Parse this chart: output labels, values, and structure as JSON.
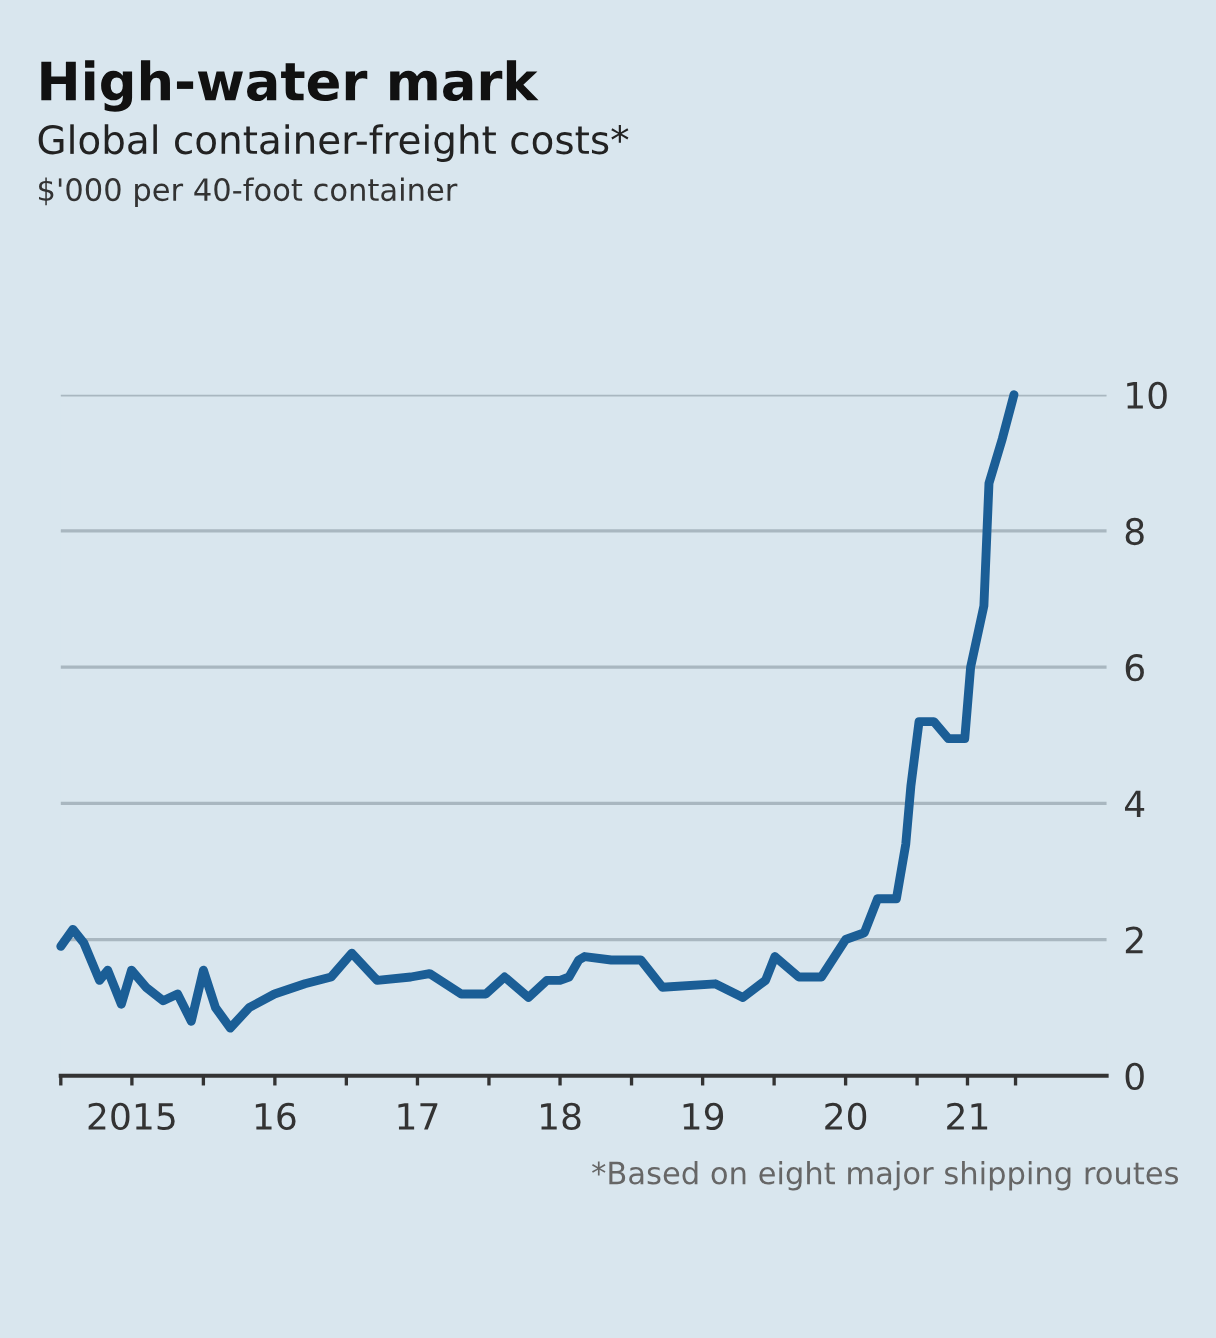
{
  "chart_data": {
    "type": "line",
    "title": "High-water mark",
    "subtitle": "Global container-freight costs*",
    "annotations": [
      "$'000 per 40-foot container",
      "*Based on eight major shipping routes"
    ],
    "series": [
      {
        "color": "#1b5e96",
        "x": [
          "2015-01-01",
          "2015-02-01",
          "2015-03-01",
          "2015-04-10",
          "2015-05-01",
          "2015-06-05",
          "2015-07-01",
          "2015-08-07",
          "2015-09-20",
          "2015-10-27",
          "2015-12-01",
          "2016-01-01",
          "2016-02-01",
          "2016-03-10",
          "2016-04-27",
          "2016-07-01",
          "2016-09-17",
          "2016-11-23",
          "2017-01-15",
          "2017-03-21",
          "2017-06-15",
          "2017-08-02",
          "2017-10-22",
          "2017-12-24",
          "2018-02-10",
          "2018-04-12",
          "2018-05-29",
          "2018-07-02",
          "2018-07-25",
          "2018-08-19",
          "2018-09-03",
          "2018-11-10",
          "2019-01-25",
          "2019-03-21",
          "2019-08-03",
          "2019-10-13",
          "2019-12-10",
          "2020-01-03",
          "2020-03-04",
          "2020-05-01",
          "2020-07-02",
          "2020-08-19",
          "2020-09-22",
          "2020-11-09",
          "2020-12-03",
          "2020-12-16",
          "2021-01-06",
          "2021-02-13",
          "2021-03-22",
          "2021-05-03",
          "2021-05-18",
          "2021-06-21",
          "2021-07-04",
          "2021-08-07",
          "2021-09-06"
        ],
        "values": [
          1.9,
          2.15,
          1.95,
          1.4,
          1.55,
          1.05,
          1.55,
          1.3,
          1.1,
          1.2,
          0.8,
          1.55,
          1.0,
          0.7,
          1.0,
          1.2,
          1.35,
          1.45,
          1.8,
          1.4,
          1.45,
          1.5,
          1.2,
          1.2,
          1.45,
          1.15,
          1.4,
          1.4,
          1.45,
          1.7,
          1.75,
          1.7,
          1.7,
          1.3,
          1.35,
          1.15,
          1.4,
          1.75,
          1.45,
          1.45,
          2.0,
          2.1,
          2.6,
          2.6,
          3.4,
          4.25,
          5.2,
          5.2,
          4.95,
          4.95,
          6.0,
          6.9,
          8.7,
          9.35,
          10.0
        ]
      }
    ],
    "xlim": [
      "2015-01-01",
      "2022-05-01"
    ],
    "xticks": [
      {
        "value": "2015-01-01",
        "label": null
      },
      {
        "value": "2015-07-02",
        "label": "2015"
      },
      {
        "value": "2016-01-01",
        "label": null
      },
      {
        "value": "2016-07-02",
        "label": "16"
      },
      {
        "value": "2017-01-01",
        "label": null
      },
      {
        "value": "2017-07-02",
        "label": "17"
      },
      {
        "value": "2018-01-01",
        "label": null
      },
      {
        "value": "2018-07-02",
        "label": "18"
      },
      {
        "value": "2019-01-01",
        "label": null
      },
      {
        "value": "2019-07-02",
        "label": "19"
      },
      {
        "value": "2020-01-01",
        "label": null
      },
      {
        "value": "2020-07-02",
        "label": "20"
      },
      {
        "value": "2021-01-01",
        "label": null
      },
      {
        "value": "2021-05-10",
        "label": "21"
      },
      {
        "value": "2021-09-10",
        "label": null
      }
    ],
    "ylim": [
      0,
      10
    ],
    "yticks": [
      0,
      2,
      4,
      6,
      8,
      10
    ],
    "grid": "y",
    "legend": false,
    "line_style": "solid",
    "marker": "none"
  }
}
